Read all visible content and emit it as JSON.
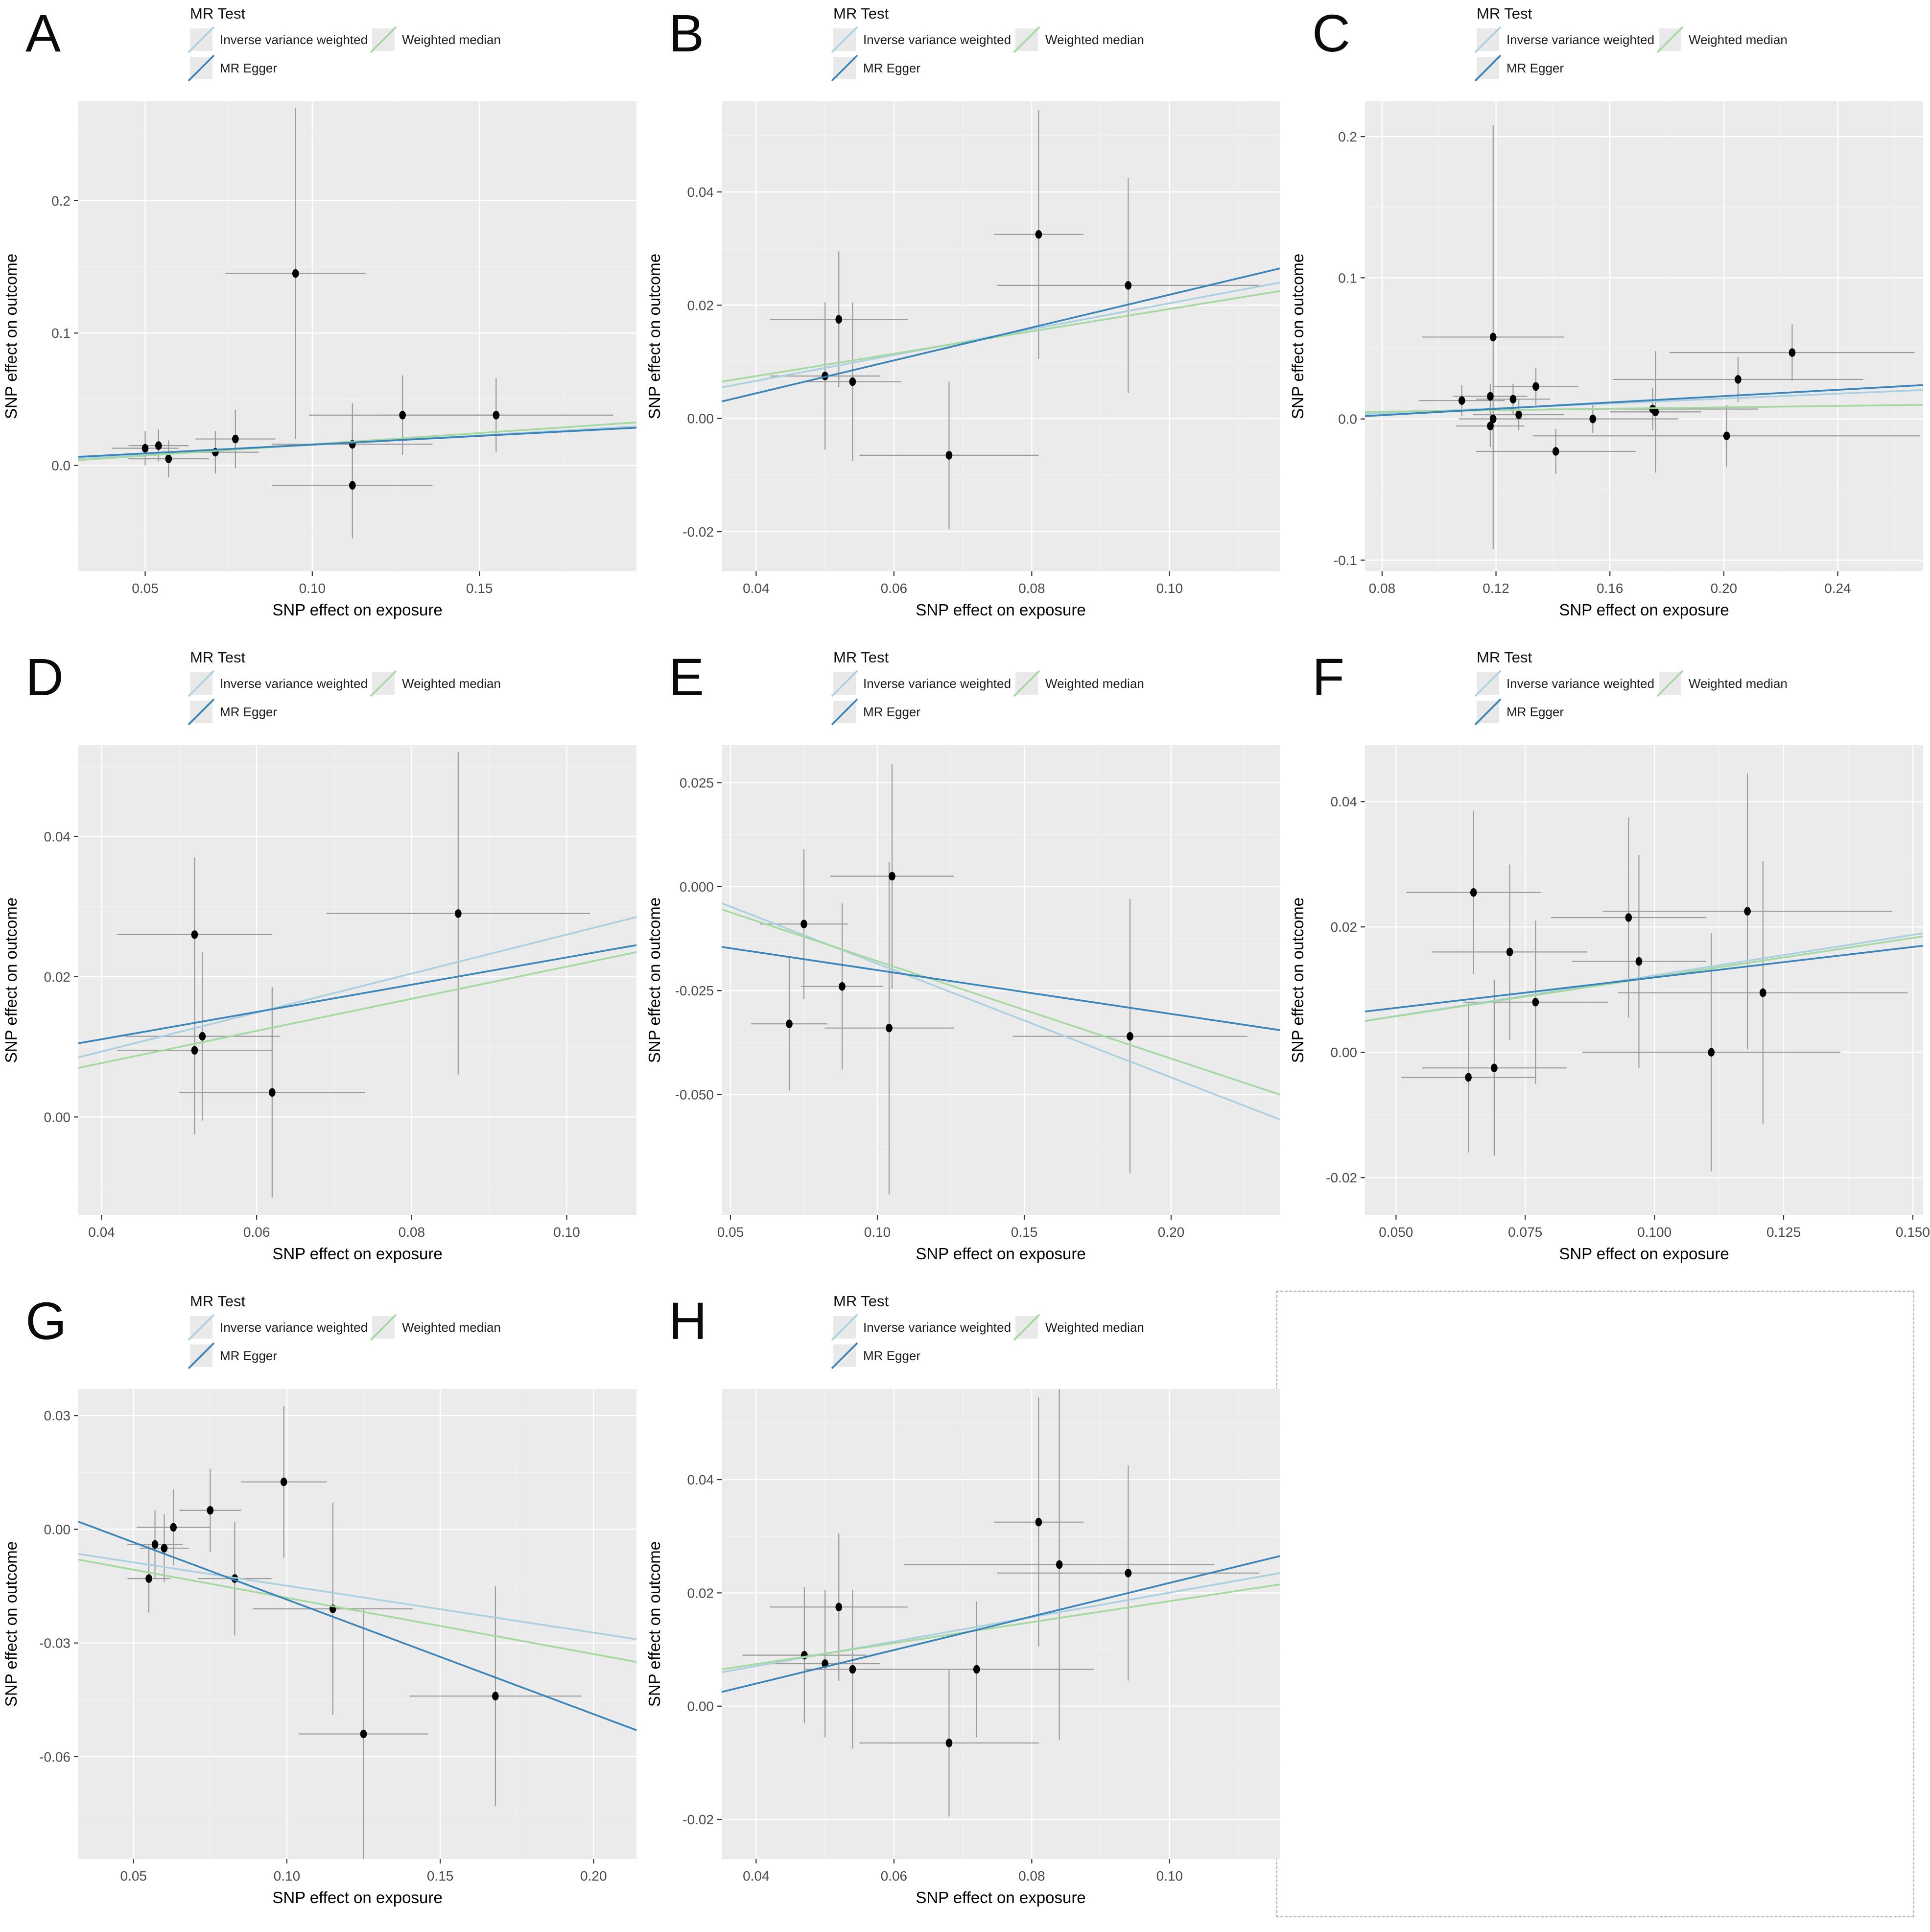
{
  "figure": {
    "panel_background": "#ebebeb",
    "grid_major_color": "#ffffff",
    "grid_minor_color": "#f3f3f3",
    "axis_text_color": "#4a4a4a",
    "axis_title_color": "#000000",
    "errorbar_color": "#9b9b9b",
    "point_color": "#000000",
    "tick_mark_color": "#333333",
    "legend": {
      "title": "MR Test",
      "items": [
        {
          "label": "Inverse variance weighted",
          "color": "#a9cfe0"
        },
        {
          "label": "MR Egger",
          "color": "#3380b8"
        },
        {
          "label": "Weighted median",
          "color": "#a3d89e"
        }
      ]
    },
    "axes": {
      "xlabel": "SNP effect on exposure",
      "ylabel": "SNP effect on outcome"
    }
  },
  "chart_data": [
    {
      "panel": "A",
      "type": "scatter",
      "xlabel": "SNP effect on exposure",
      "ylabel": "SNP effect on outcome",
      "xlim": [
        0.03,
        0.197
      ],
      "ylim": [
        -0.08,
        0.275
      ],
      "xticks": [
        0.05,
        0.1,
        0.15
      ],
      "xtick_labels": [
        "0.05",
        "0.10",
        "0.15"
      ],
      "yticks": [
        0.0,
        0.1,
        0.2
      ],
      "ytick_labels": [
        "0.0",
        "0.1",
        "0.2"
      ],
      "points": [
        {
          "x": 0.095,
          "y": 0.145,
          "xerr": 0.021,
          "yerr": 0.125
        },
        {
          "x": 0.05,
          "y": 0.013,
          "xerr": 0.01,
          "yerr": 0.013
        },
        {
          "x": 0.054,
          "y": 0.015,
          "xerr": 0.009,
          "yerr": 0.012
        },
        {
          "x": 0.057,
          "y": 0.005,
          "xerr": 0.012,
          "yerr": 0.014
        },
        {
          "x": 0.071,
          "y": 0.01,
          "xerr": 0.013,
          "yerr": 0.016
        },
        {
          "x": 0.077,
          "y": 0.02,
          "xerr": 0.012,
          "yerr": 0.022
        },
        {
          "x": 0.112,
          "y": 0.016,
          "xerr": 0.024,
          "yerr": 0.031
        },
        {
          "x": 0.127,
          "y": 0.038,
          "xerr": 0.028,
          "yerr": 0.03
        },
        {
          "x": 0.155,
          "y": 0.038,
          "xerr": 0.035,
          "yerr": 0.028
        },
        {
          "x": 0.112,
          "y": -0.015,
          "xerr": 0.024,
          "yerr": 0.04
        }
      ],
      "lines": [
        {
          "series": "Inverse variance weighted",
          "x": [
            0.03,
            0.197
          ],
          "y": [
            0.0055,
            0.0295
          ]
        },
        {
          "series": "Weighted median",
          "x": [
            0.03,
            0.197
          ],
          "y": [
            0.004,
            0.0325
          ]
        },
        {
          "series": "MR Egger",
          "x": [
            0.03,
            0.197
          ],
          "y": [
            0.0065,
            0.0285
          ]
        }
      ]
    },
    {
      "panel": "B",
      "type": "scatter",
      "xlabel": "SNP effect on exposure",
      "ylabel": "SNP effect on outcome",
      "xlim": [
        0.035,
        0.116
      ],
      "ylim": [
        -0.027,
        0.056
      ],
      "xticks": [
        0.04,
        0.06,
        0.08,
        0.1
      ],
      "xtick_labels": [
        "0.04",
        "0.06",
        "0.08",
        "0.10"
      ],
      "yticks": [
        -0.02,
        0.0,
        0.02,
        0.04
      ],
      "ytick_labels": [
        "-0.02",
        "0.00",
        "0.02",
        "0.04"
      ],
      "points": [
        {
          "x": 0.052,
          "y": 0.0175,
          "xerr": 0.01,
          "yerr": 0.012
        },
        {
          "x": 0.05,
          "y": 0.0075,
          "xerr": 0.008,
          "yerr": 0.013
        },
        {
          "x": 0.054,
          "y": 0.0065,
          "xerr": 0.007,
          "yerr": 0.014
        },
        {
          "x": 0.068,
          "y": -0.0065,
          "xerr": 0.013,
          "yerr": 0.013
        },
        {
          "x": 0.081,
          "y": 0.0325,
          "xerr": 0.0065,
          "yerr": 0.022
        },
        {
          "x": 0.094,
          "y": 0.0235,
          "xerr": 0.019,
          "yerr": 0.019
        }
      ],
      "lines": [
        {
          "series": "Inverse variance weighted",
          "x": [
            0.035,
            0.116
          ],
          "y": [
            0.0055,
            0.024
          ]
        },
        {
          "series": "Weighted median",
          "x": [
            0.035,
            0.116
          ],
          "y": [
            0.0065,
            0.0225
          ]
        },
        {
          "series": "MR Egger",
          "x": [
            0.035,
            0.116
          ],
          "y": [
            0.003,
            0.0265
          ]
        }
      ]
    },
    {
      "panel": "C",
      "type": "scatter",
      "xlabel": "SNP effect on exposure",
      "ylabel": "SNP effect on outcome",
      "xlim": [
        0.074,
        0.27
      ],
      "ylim": [
        -0.108,
        0.225
      ],
      "xticks": [
        0.08,
        0.12,
        0.16,
        0.2,
        0.24
      ],
      "xtick_labels": [
        "0.08",
        "0.12",
        "0.16",
        "0.20",
        "0.24"
      ],
      "yticks": [
        -0.1,
        0.0,
        0.1,
        0.2
      ],
      "ytick_labels": [
        "-0.1",
        "0.0",
        "0.1",
        "0.2"
      ],
      "points": [
        {
          "x": 0.119,
          "y": 0.058,
          "xerr": 0.025,
          "yerr": 0.15
        },
        {
          "x": 0.224,
          "y": 0.047,
          "xerr": 0.043,
          "yerr": 0.02
        },
        {
          "x": 0.205,
          "y": 0.028,
          "xerr": 0.044,
          "yerr": 0.016
        },
        {
          "x": 0.134,
          "y": 0.023,
          "xerr": 0.015,
          "yerr": 0.013
        },
        {
          "x": 0.118,
          "y": 0.016,
          "xerr": 0.013,
          "yerr": 0.009
        },
        {
          "x": 0.126,
          "y": 0.014,
          "xerr": 0.013,
          "yerr": 0.011
        },
        {
          "x": 0.108,
          "y": 0.013,
          "xerr": 0.015,
          "yerr": 0.011
        },
        {
          "x": 0.175,
          "y": 0.007,
          "xerr": 0.037,
          "yerr": 0.015
        },
        {
          "x": 0.176,
          "y": 0.005,
          "xerr": 0.016,
          "yerr": 0.043
        },
        {
          "x": 0.128,
          "y": 0.003,
          "xerr": 0.016,
          "yerr": 0.011
        },
        {
          "x": 0.119,
          "y": 0.0,
          "xerr": 0.012,
          "yerr": 0.009
        },
        {
          "x": 0.154,
          "y": 0.0,
          "xerr": 0.03,
          "yerr": 0.01
        },
        {
          "x": 0.118,
          "y": -0.005,
          "xerr": 0.012,
          "yerr": 0.015
        },
        {
          "x": 0.201,
          "y": -0.012,
          "xerr": 0.068,
          "yerr": 0.022
        },
        {
          "x": 0.141,
          "y": -0.023,
          "xerr": 0.028,
          "yerr": 0.016
        }
      ],
      "lines": [
        {
          "series": "Inverse variance weighted",
          "x": [
            0.074,
            0.27
          ],
          "y": [
            0.0035,
            0.0205
          ]
        },
        {
          "series": "Weighted median",
          "x": [
            0.074,
            0.27
          ],
          "y": [
            0.005,
            0.01
          ]
        },
        {
          "series": "MR Egger",
          "x": [
            0.074,
            0.27
          ],
          "y": [
            0.002,
            0.024
          ]
        }
      ]
    },
    {
      "panel": "D",
      "type": "scatter",
      "xlabel": "SNP effect on exposure",
      "ylabel": "SNP effect on outcome",
      "xlim": [
        0.037,
        0.109
      ],
      "ylim": [
        -0.014,
        0.053
      ],
      "xticks": [
        0.04,
        0.06,
        0.08,
        0.1
      ],
      "xtick_labels": [
        "0.04",
        "0.06",
        "0.08",
        "0.10"
      ],
      "yticks": [
        0.0,
        0.02,
        0.04
      ],
      "ytick_labels": [
        "0.00",
        "0.02",
        "0.04"
      ],
      "points": [
        {
          "x": 0.052,
          "y": 0.026,
          "xerr": 0.01,
          "yerr": 0.011
        },
        {
          "x": 0.086,
          "y": 0.029,
          "xerr": 0.017,
          "yerr": 0.023
        },
        {
          "x": 0.053,
          "y": 0.0115,
          "xerr": 0.01,
          "yerr": 0.012
        },
        {
          "x": 0.052,
          "y": 0.0095,
          "xerr": 0.01,
          "yerr": 0.012
        },
        {
          "x": 0.062,
          "y": 0.0035,
          "xerr": 0.012,
          "yerr": 0.015
        }
      ],
      "lines": [
        {
          "series": "Inverse variance weighted",
          "x": [
            0.037,
            0.109
          ],
          "y": [
            0.0085,
            0.0285
          ]
        },
        {
          "series": "Weighted median",
          "x": [
            0.037,
            0.109
          ],
          "y": [
            0.007,
            0.0235
          ]
        },
        {
          "series": "MR Egger",
          "x": [
            0.037,
            0.109
          ],
          "y": [
            0.0105,
            0.0245
          ]
        }
      ]
    },
    {
      "panel": "E",
      "type": "scatter",
      "xlabel": "SNP effect on exposure",
      "ylabel": "SNP effect on outcome",
      "xlim": [
        0.047,
        0.237
      ],
      "ylim": [
        -0.079,
        0.034
      ],
      "xticks": [
        0.05,
        0.1,
        0.15,
        0.2
      ],
      "xtick_labels": [
        "0.05",
        "0.10",
        "0.15",
        "0.20"
      ],
      "yticks": [
        -0.05,
        -0.025,
        0.0,
        0.025
      ],
      "ytick_labels": [
        "-0.050",
        "-0.025",
        "0.000",
        "0.025"
      ],
      "points": [
        {
          "x": 0.105,
          "y": 0.0025,
          "xerr": 0.021,
          "yerr": 0.027
        },
        {
          "x": 0.075,
          "y": -0.009,
          "xerr": 0.015,
          "yerr": 0.018
        },
        {
          "x": 0.088,
          "y": -0.024,
          "xerr": 0.014,
          "yerr": 0.02
        },
        {
          "x": 0.07,
          "y": -0.033,
          "xerr": 0.013,
          "yerr": 0.016
        },
        {
          "x": 0.104,
          "y": -0.034,
          "xerr": 0.022,
          "yerr": 0.04
        },
        {
          "x": 0.186,
          "y": -0.036,
          "xerr": 0.04,
          "yerr": 0.033
        }
      ],
      "lines": [
        {
          "series": "Inverse variance weighted",
          "x": [
            0.047,
            0.237
          ],
          "y": [
            -0.004,
            -0.056
          ]
        },
        {
          "series": "Weighted median",
          "x": [
            0.047,
            0.237
          ],
          "y": [
            -0.0055,
            -0.05
          ]
        },
        {
          "series": "MR Egger",
          "x": [
            0.047,
            0.237
          ],
          "y": [
            -0.0145,
            -0.0345
          ]
        }
      ]
    },
    {
      "panel": "F",
      "type": "scatter",
      "xlabel": "SNP effect on exposure",
      "ylabel": "SNP effect on outcome",
      "xlim": [
        0.044,
        0.152
      ],
      "ylim": [
        -0.026,
        0.049
      ],
      "xticks": [
        0.05,
        0.075,
        0.1,
        0.125,
        0.15
      ],
      "xtick_labels": [
        "0.050",
        "0.075",
        "0.100",
        "0.125",
        "0.150"
      ],
      "yticks": [
        -0.02,
        0.0,
        0.02,
        0.04
      ],
      "ytick_labels": [
        "-0.02",
        "0.00",
        "0.02",
        "0.04"
      ],
      "points": [
        {
          "x": 0.065,
          "y": 0.0255,
          "xerr": 0.013,
          "yerr": 0.013
        },
        {
          "x": 0.072,
          "y": 0.016,
          "xerr": 0.015,
          "yerr": 0.014
        },
        {
          "x": 0.077,
          "y": 0.008,
          "xerr": 0.014,
          "yerr": 0.013
        },
        {
          "x": 0.095,
          "y": 0.0215,
          "xerr": 0.015,
          "yerr": 0.016
        },
        {
          "x": 0.097,
          "y": 0.0145,
          "xerr": 0.013,
          "yerr": 0.017
        },
        {
          "x": 0.118,
          "y": 0.0225,
          "xerr": 0.028,
          "yerr": 0.022
        },
        {
          "x": 0.121,
          "y": 0.0095,
          "xerr": 0.028,
          "yerr": 0.021
        },
        {
          "x": 0.111,
          "y": 0.0,
          "xerr": 0.025,
          "yerr": 0.019
        },
        {
          "x": 0.069,
          "y": -0.0025,
          "xerr": 0.014,
          "yerr": 0.014
        },
        {
          "x": 0.064,
          "y": -0.004,
          "xerr": 0.013,
          "yerr": 0.012
        }
      ],
      "lines": [
        {
          "series": "Inverse variance weighted",
          "x": [
            0.044,
            0.152
          ],
          "y": [
            0.005,
            0.019
          ]
        },
        {
          "series": "Weighted median",
          "x": [
            0.044,
            0.152
          ],
          "y": [
            0.005,
            0.0185
          ]
        },
        {
          "series": "MR Egger",
          "x": [
            0.044,
            0.152
          ],
          "y": [
            0.0065,
            0.017
          ]
        }
      ]
    },
    {
      "panel": "G",
      "type": "scatter",
      "xlabel": "SNP effect on exposure",
      "ylabel": "SNP effect on outcome",
      "xlim": [
        0.032,
        0.214
      ],
      "ylim": [
        -0.087,
        0.037
      ],
      "xticks": [
        0.05,
        0.1,
        0.15,
        0.2
      ],
      "xtick_labels": [
        "0.05",
        "0.10",
        "0.15",
        "0.20"
      ],
      "yticks": [
        -0.06,
        -0.03,
        0.0,
        0.03
      ],
      "ytick_labels": [
        "-0.06",
        "-0.03",
        "0.00",
        "0.03"
      ],
      "points": [
        {
          "x": 0.099,
          "y": 0.0125,
          "xerr": 0.014,
          "yerr": 0.02
        },
        {
          "x": 0.075,
          "y": 0.005,
          "xerr": 0.01,
          "yerr": 0.011
        },
        {
          "x": 0.063,
          "y": 0.0005,
          "xerr": 0.012,
          "yerr": 0.01
        },
        {
          "x": 0.057,
          "y": -0.004,
          "xerr": 0.009,
          "yerr": 0.009
        },
        {
          "x": 0.06,
          "y": -0.005,
          "xerr": 0.008,
          "yerr": 0.009
        },
        {
          "x": 0.055,
          "y": -0.013,
          "xerr": 0.007,
          "yerr": 0.009
        },
        {
          "x": 0.083,
          "y": -0.013,
          "xerr": 0.012,
          "yerr": 0.015
        },
        {
          "x": 0.115,
          "y": -0.021,
          "xerr": 0.026,
          "yerr": 0.028
        },
        {
          "x": 0.168,
          "y": -0.044,
          "xerr": 0.028,
          "yerr": 0.029
        },
        {
          "x": 0.125,
          "y": -0.054,
          "xerr": 0.021,
          "yerr": 0.033
        }
      ],
      "lines": [
        {
          "series": "Inverse variance weighted",
          "x": [
            0.032,
            0.214
          ],
          "y": [
            -0.0065,
            -0.029
          ]
        },
        {
          "series": "Weighted median",
          "x": [
            0.032,
            0.214
          ],
          "y": [
            -0.008,
            -0.035
          ]
        },
        {
          "series": "MR Egger",
          "x": [
            0.032,
            0.214
          ],
          "y": [
            0.002,
            -0.053
          ]
        }
      ]
    },
    {
      "panel": "H",
      "type": "scatter",
      "xlabel": "SNP effect on exposure",
      "ylabel": "SNP effect on outcome",
      "xlim": [
        0.035,
        0.116
      ],
      "ylim": [
        -0.027,
        0.056
      ],
      "xticks": [
        0.04,
        0.06,
        0.08,
        0.1
      ],
      "xtick_labels": [
        "0.04",
        "0.06",
        "0.08",
        "0.10"
      ],
      "yticks": [
        -0.02,
        0.0,
        0.02,
        0.04
      ],
      "ytick_labels": [
        "-0.02",
        "0.00",
        "0.02",
        "0.04"
      ],
      "points": [
        {
          "x": 0.052,
          "y": 0.0175,
          "xerr": 0.01,
          "yerr": 0.013
        },
        {
          "x": 0.047,
          "y": 0.009,
          "xerr": 0.009,
          "yerr": 0.012
        },
        {
          "x": 0.05,
          "y": 0.0075,
          "xerr": 0.008,
          "yerr": 0.013
        },
        {
          "x": 0.054,
          "y": 0.0065,
          "xerr": 0.007,
          "yerr": 0.014
        },
        {
          "x": 0.072,
          "y": 0.0065,
          "xerr": 0.017,
          "yerr": 0.012
        },
        {
          "x": 0.068,
          "y": -0.0065,
          "xerr": 0.013,
          "yerr": 0.013
        },
        {
          "x": 0.081,
          "y": 0.0325,
          "xerr": 0.0065,
          "yerr": 0.022
        },
        {
          "x": 0.084,
          "y": 0.025,
          "xerr": 0.0225,
          "yerr": 0.031
        },
        {
          "x": 0.094,
          "y": 0.0235,
          "xerr": 0.019,
          "yerr": 0.019
        }
      ],
      "lines": [
        {
          "series": "Inverse variance weighted",
          "x": [
            0.035,
            0.116
          ],
          "y": [
            0.006,
            0.0235
          ]
        },
        {
          "series": "Weighted median",
          "x": [
            0.035,
            0.116
          ],
          "y": [
            0.0065,
            0.0215
          ]
        },
        {
          "series": "MR Egger",
          "x": [
            0.035,
            0.116
          ],
          "y": [
            0.0025,
            0.0265
          ]
        }
      ]
    }
  ]
}
